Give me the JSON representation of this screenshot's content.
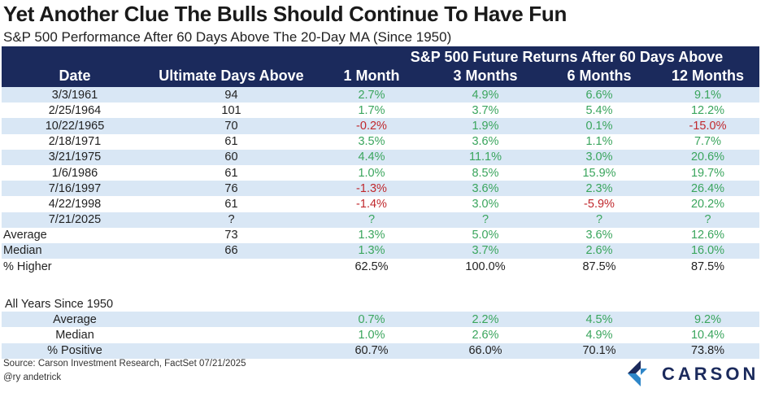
{
  "title": "Yet Another Clue The Bulls Should Continue To Have Fun",
  "subtitle": "S&P 500 Performance After 60 Days Above The 20-Day MA (Since 1950)",
  "chart_data": {
    "type": "table",
    "super_header": "S&P 500 Future Returns After 60 Days Above",
    "columns": [
      "Date",
      "Ultimate Days Above",
      "1 Month",
      "3 Months",
      "6 Months",
      "12 Months"
    ],
    "rows": [
      {
        "date": "3/3/1961",
        "days": "94",
        "m1": "2.7%",
        "m3": "4.9%",
        "m6": "6.6%",
        "m12": "9.1%"
      },
      {
        "date": "2/25/1964",
        "days": "101",
        "m1": "1.7%",
        "m3": "3.7%",
        "m6": "5.4%",
        "m12": "12.2%"
      },
      {
        "date": "10/22/1965",
        "days": "70",
        "m1": "-0.2%",
        "m3": "1.9%",
        "m6": "0.1%",
        "m12": "-15.0%"
      },
      {
        "date": "2/18/1971",
        "days": "61",
        "m1": "3.5%",
        "m3": "3.6%",
        "m6": "1.1%",
        "m12": "7.7%"
      },
      {
        "date": "3/21/1975",
        "days": "60",
        "m1": "4.4%",
        "m3": "11.1%",
        "m6": "3.0%",
        "m12": "20.6%"
      },
      {
        "date": "1/6/1986",
        "days": "61",
        "m1": "1.0%",
        "m3": "8.5%",
        "m6": "15.9%",
        "m12": "19.7%"
      },
      {
        "date": "7/16/1997",
        "days": "76",
        "m1": "-1.3%",
        "m3": "3.6%",
        "m6": "2.3%",
        "m12": "26.4%"
      },
      {
        "date": "4/22/1998",
        "days": "61",
        "m1": "-1.4%",
        "m3": "3.0%",
        "m6": "-5.9%",
        "m12": "20.2%"
      },
      {
        "date": "7/21/2025",
        "days": "?",
        "m1": "?",
        "m3": "?",
        "m6": "?",
        "m12": "?"
      }
    ],
    "summary": [
      {
        "label": "Average",
        "days": "73",
        "m1": "1.3%",
        "m3": "5.0%",
        "m6": "3.6%",
        "m12": "12.6%"
      },
      {
        "label": "Median",
        "days": "66",
        "m1": "1.3%",
        "m3": "3.7%",
        "m6": "2.6%",
        "m12": "16.0%"
      },
      {
        "label": "% Higher",
        "days": "",
        "m1": "62.5%",
        "m3": "100.0%",
        "m6": "87.5%",
        "m12": "87.5%"
      }
    ],
    "all_years_label": "All Years Since 1950",
    "all_years": [
      {
        "label": "Average",
        "m1": "0.7%",
        "m3": "2.2%",
        "m6": "4.5%",
        "m12": "9.2%"
      },
      {
        "label": "Median",
        "m1": "1.0%",
        "m3": "2.6%",
        "m6": "4.9%",
        "m12": "10.4%"
      },
      {
        "label": "% Positive",
        "m1": "60.7%",
        "m3": "66.0%",
        "m6": "70.1%",
        "m12": "73.8%"
      }
    ]
  },
  "footer": {
    "source": "Source: Carson Investment Research, FactSet 07/21/2025",
    "handle": "@ry andetrick",
    "logo_text": "CARSON"
  },
  "colors": {
    "header_bg": "#1b2a5c",
    "shade": "#d9e7f5",
    "positive": "#3aa55d",
    "negative": "#c0282d"
  }
}
